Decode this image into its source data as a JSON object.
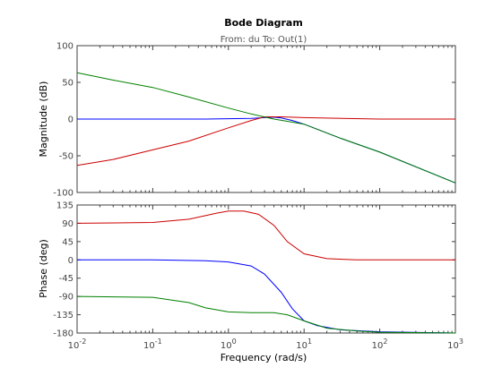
{
  "chart_data": {
    "type": "line",
    "title": "Bode Diagram",
    "subtitle": "From: du  To: Out(1)",
    "xlabel": "Frequency  (rad/s)",
    "x_scale": "log",
    "xlim": [
      0.01,
      1000
    ],
    "x_tick_labels": [
      {
        "base": "10",
        "exp": "-2"
      },
      {
        "base": "10",
        "exp": "-1"
      },
      {
        "base": "10",
        "exp": "0"
      },
      {
        "base": "10",
        "exp": "1"
      },
      {
        "base": "10",
        "exp": "2"
      },
      {
        "base": "10",
        "exp": "3"
      }
    ],
    "panels": [
      {
        "name": "magnitude",
        "ylabel": "Magnitude (dB)",
        "ylim": [
          -100,
          100
        ],
        "y_ticks": [
          "-100",
          "-50",
          "0",
          "50",
          "100"
        ],
        "y_tick_values": [
          -100,
          -50,
          0,
          50,
          100
        ],
        "series": [
          {
            "color": "#0000ff",
            "x": [
              0.01,
              0.1,
              0.5,
              1,
              2,
              3,
              4,
              5,
              7,
              10,
              30,
              100,
              1000
            ],
            "y": [
              0,
              0,
              0,
              0.5,
              1,
              2,
              2.5,
              1.5,
              -2,
              -7,
              -26,
              -45,
              -87
            ]
          },
          {
            "color": "#cc0000",
            "x": [
              0.01,
              0.03,
              0.1,
              0.3,
              1,
              2,
              3,
              5,
              10,
              100,
              1000
            ],
            "y": [
              -63,
              -55,
              -42,
              -30,
              -12,
              -2,
              3,
              3,
              2,
              0,
              0
            ]
          },
          {
            "color": "#008000",
            "x": [
              0.01,
              0.03,
              0.1,
              0.3,
              1,
              2,
              4,
              6,
              10,
              30,
              100,
              1000
            ],
            "y": [
              63,
              53,
              43,
              30,
              15,
              7,
              0,
              -3,
              -7,
              -26,
              -45,
              -87
            ]
          }
        ]
      },
      {
        "name": "phase",
        "ylabel": "Phase (deg)",
        "ylim": [
          -180,
          135
        ],
        "y_ticks": [
          "-180",
          "-135",
          "-90",
          "-45",
          "0",
          "45",
          "90",
          "135"
        ],
        "y_tick_values": [
          -180,
          -135,
          -90,
          -45,
          0,
          45,
          90,
          135
        ],
        "series": [
          {
            "color": "#0000ff",
            "x": [
              0.01,
              0.1,
              0.5,
              1,
              2,
              3,
              5,
              7,
              10,
              15,
              30,
              100,
              1000
            ],
            "y": [
              0,
              0,
              -2,
              -5,
              -15,
              -35,
              -80,
              -120,
              -150,
              -162,
              -172,
              -177,
              -180
            ]
          },
          {
            "color": "#cc0000",
            "x": [
              0.01,
              0.1,
              0.3,
              0.7,
              1,
              1.6,
              2.5,
              4,
              6,
              10,
              20,
              50,
              1000
            ],
            "y": [
              90,
              92,
              100,
              115,
              120,
              120,
              112,
              85,
              45,
              15,
              3,
              0,
              0
            ]
          },
          {
            "color": "#008000",
            "x": [
              0.01,
              0.1,
              0.3,
              0.5,
              1,
              2,
              4,
              6,
              10,
              20,
              50,
              100,
              1000
            ],
            "y": [
              -90,
              -92,
              -105,
              -118,
              -128,
              -130,
              -130,
              -135,
              -150,
              -168,
              -175,
              -178,
              -180
            ]
          }
        ]
      }
    ]
  }
}
